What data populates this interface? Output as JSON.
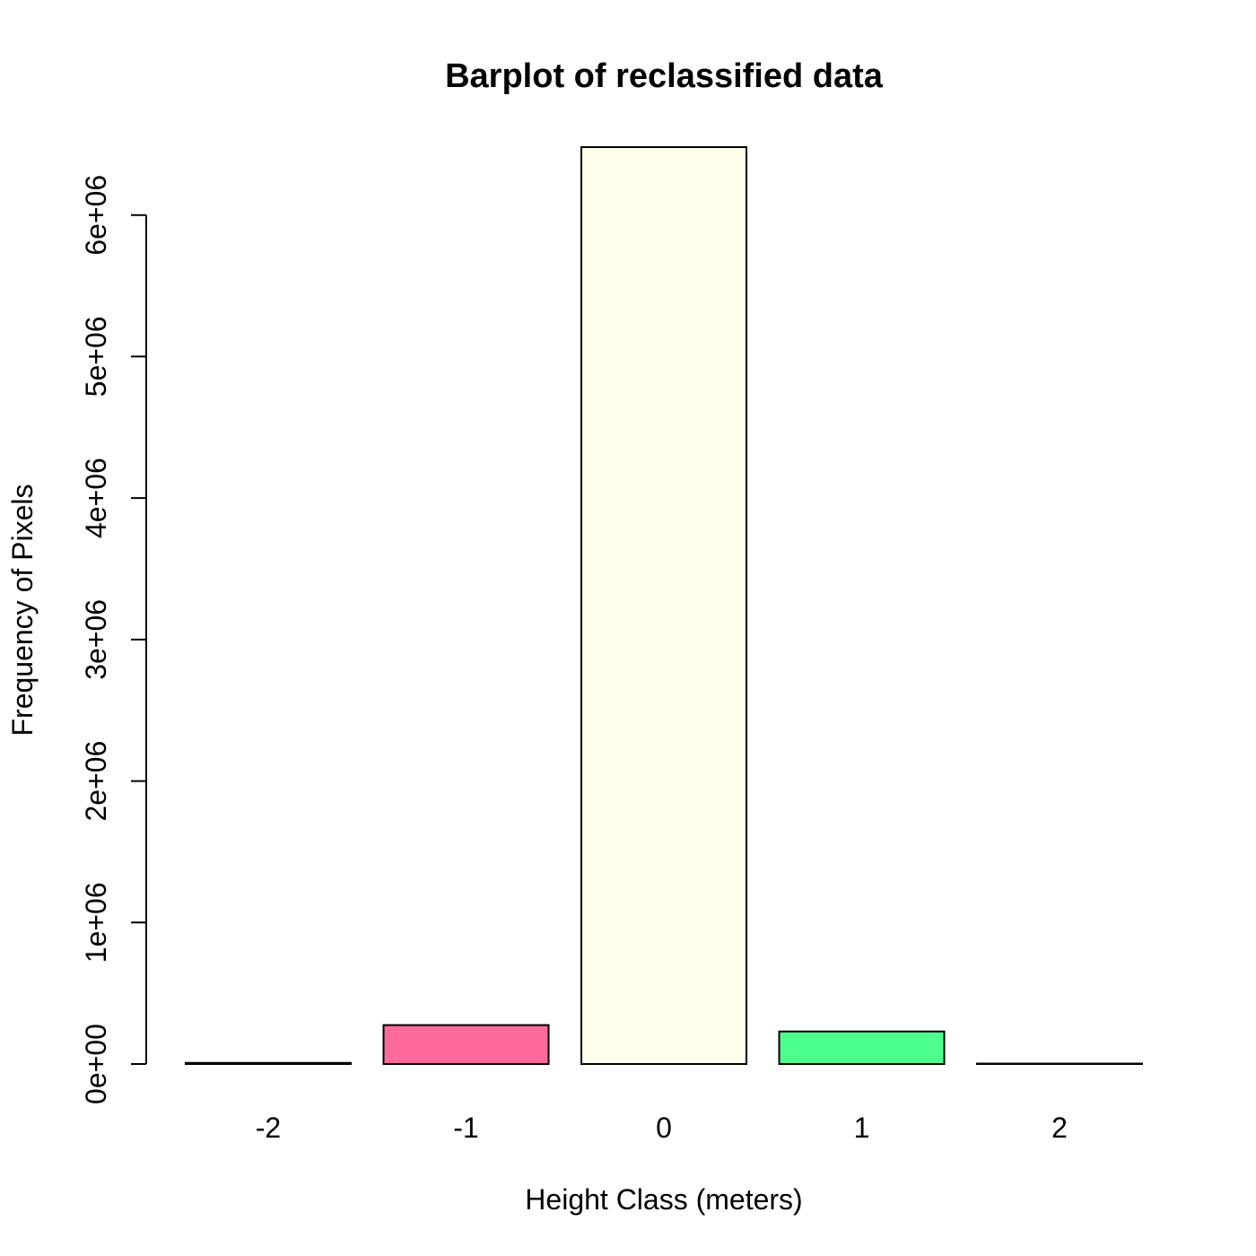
{
  "chart_data": {
    "type": "bar",
    "title": "Barplot of reclassified data",
    "xlabel": "Height Class (meters)",
    "ylabel": "Frequency of Pixels",
    "categories": [
      "-2",
      "-1",
      "0",
      "1",
      "2"
    ],
    "values": [
      8000,
      275000,
      6480000,
      230000,
      3000
    ],
    "colors": [
      "#ffffff",
      "#ff6a9c",
      "#ffffeb",
      "#4dff8c",
      "#ffffff"
    ],
    "y_ticks": [
      0,
      1000000,
      2000000,
      3000000,
      4000000,
      5000000,
      6000000
    ],
    "y_tick_labels": [
      "0e+00",
      "1e+06",
      "2e+06",
      "3e+06",
      "4e+06",
      "5e+06",
      "6e+06"
    ],
    "ylim": [
      0,
      6480000
    ],
    "grid": false,
    "legend": "none"
  }
}
